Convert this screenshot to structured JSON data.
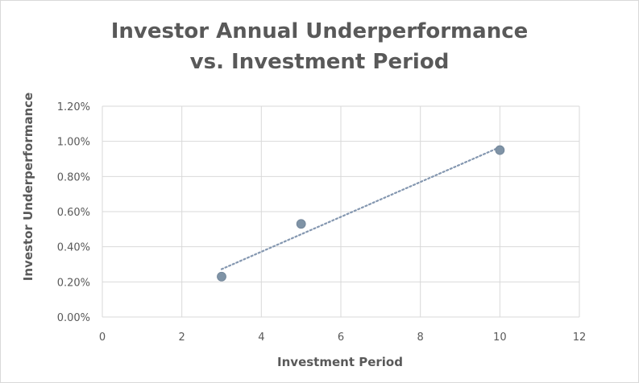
{
  "chart_data": {
    "type": "scatter",
    "title": [
      "Investor Annual Underperformance",
      "vs. Investment Period"
    ],
    "xlabel": "Investment Period",
    "ylabel": "Investor Underperformance",
    "xlim": [
      0,
      12
    ],
    "ylim": [
      0,
      0.012
    ],
    "x_ticks": [
      0,
      2,
      4,
      6,
      8,
      10,
      12
    ],
    "y_ticks": [
      0,
      0.002,
      0.004,
      0.006,
      0.008,
      0.01,
      0.012
    ],
    "x_tick_labels": [
      "0",
      "2",
      "4",
      "6",
      "8",
      "10",
      "12"
    ],
    "y_tick_labels": [
      "0.00%",
      "0.20%",
      "0.40%",
      "0.60%",
      "0.80%",
      "1.00%",
      "1.20%"
    ],
    "grid": true,
    "legend": "none",
    "series": [
      {
        "points": [
          {
            "x": 3,
            "y": 0.0023
          },
          {
            "x": 5,
            "y": 0.0053
          },
          {
            "x": 10,
            "y": 0.0095
          }
        ],
        "color": "#7f93a6",
        "trendline": {
          "type": "linear",
          "style": "dotted",
          "color": "#8497b0"
        }
      }
    ]
  }
}
